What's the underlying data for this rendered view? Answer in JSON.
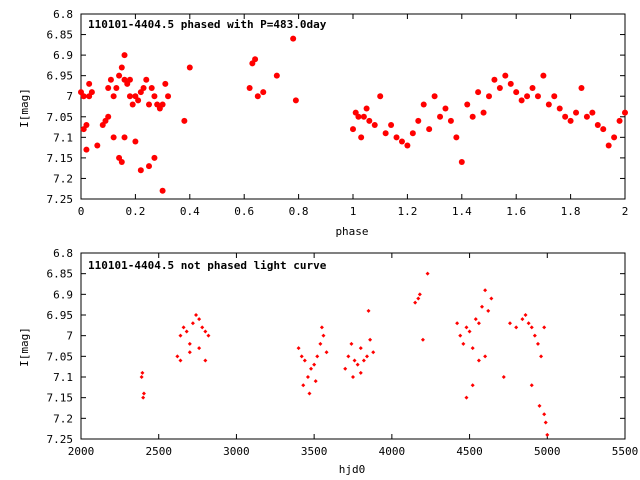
{
  "colors": {
    "points": "#ff0000",
    "frame": "#000000",
    "background": "#ffffff"
  },
  "chart_data": [
    {
      "type": "scatter",
      "title": "110101-4404.5 phased with P=483.0day",
      "xlabel": "phase",
      "ylabel": "I[mag]",
      "xlim": [
        0,
        2
      ],
      "ylim": [
        6.8,
        7.25
      ],
      "y_inverted": true,
      "xticks": [
        "0",
        "0.2",
        "0.4",
        "0.6",
        "0.8",
        "1",
        "1.2",
        "1.4",
        "1.6",
        "1.8",
        "2"
      ],
      "xtick_values": [
        0,
        0.2,
        0.4,
        0.6,
        0.8,
        1.0,
        1.2,
        1.4,
        1.6,
        1.8,
        2.0
      ],
      "yticks": [
        "6.8",
        "6.85",
        "6.9",
        "6.95",
        "7",
        "7.05",
        "7.1",
        "7.15",
        "7.2",
        "7.25"
      ],
      "ytick_values": [
        6.8,
        6.85,
        6.9,
        6.95,
        7.0,
        7.05,
        7.1,
        7.15,
        7.2,
        7.25
      ],
      "marker": "filled-circle",
      "x": [
        0.0,
        0.01,
        0.01,
        0.02,
        0.02,
        0.03,
        0.03,
        0.04,
        0.06,
        0.08,
        0.09,
        0.1,
        0.1,
        0.11,
        0.12,
        0.13,
        0.14,
        0.15,
        0.16,
        0.17,
        0.18,
        0.18,
        0.19,
        0.2,
        0.21,
        0.22,
        0.23,
        0.24,
        0.25,
        0.26,
        0.27,
        0.28,
        0.29,
        0.3,
        0.31,
        0.32,
        0.12,
        0.14,
        0.16,
        0.2,
        0.22,
        0.27,
        0.38,
        0.4,
        0.62,
        0.63,
        0.64,
        0.65,
        0.67,
        0.72,
        0.78,
        0.79,
        0.16,
        0.3,
        0.15,
        0.25
      ],
      "y": [
        6.99,
        7.0,
        7.08,
        7.13,
        7.07,
        7.0,
        6.97,
        6.99,
        7.12,
        7.07,
        7.06,
        6.98,
        7.05,
        6.96,
        7.0,
        6.98,
        6.95,
        6.93,
        6.96,
        6.97,
        6.96,
        7.0,
        7.02,
        7.0,
        7.01,
        6.99,
        6.98,
        6.96,
        7.02,
        6.98,
        7.0,
        7.02,
        7.03,
        7.02,
        6.97,
        7.0,
        7.1,
        7.15,
        7.1,
        7.11,
        7.18,
        7.15,
        7.06,
        6.93,
        6.98,
        6.92,
        6.91,
        7.0,
        6.99,
        6.95,
        6.86,
        7.01,
        6.9,
        7.23,
        7.16,
        7.17
      ],
      "x2": [
        1.0,
        1.01,
        1.02,
        1.03,
        1.04,
        1.05,
        1.06,
        1.08,
        1.1,
        1.12,
        1.14,
        1.16,
        1.18,
        1.2,
        1.22,
        1.24,
        1.26,
        1.28,
        1.3,
        1.32,
        1.34,
        1.36,
        1.38,
        1.4,
        1.42,
        1.44,
        1.46,
        1.48,
        1.5,
        1.52,
        1.54,
        1.56,
        1.58,
        1.6,
        1.62,
        1.64,
        1.66,
        1.68,
        1.7,
        1.72,
        1.74,
        1.76,
        1.78,
        1.8,
        1.82,
        1.84,
        1.86,
        1.88,
        1.9,
        1.92,
        1.94,
        1.96,
        1.98,
        2.0
      ],
      "y2": [
        7.08,
        7.04,
        7.05,
        7.1,
        7.05,
        7.03,
        7.06,
        7.07,
        7.0,
        7.09,
        7.07,
        7.1,
        7.11,
        7.12,
        7.09,
        7.06,
        7.02,
        7.08,
        7.0,
        7.05,
        7.03,
        7.06,
        7.1,
        7.16,
        7.02,
        7.05,
        6.99,
        7.04,
        7.0,
        6.96,
        6.98,
        6.95,
        6.97,
        6.99,
        7.01,
        7.0,
        6.98,
        7.0,
        6.95,
        7.02,
        7.0,
        7.03,
        7.05,
        7.06,
        7.04,
        6.98,
        7.05,
        7.04,
        7.07,
        7.08,
        7.12,
        7.1,
        7.06,
        7.04
      ]
    },
    {
      "type": "scatter",
      "title": "110101-4404.5 not phased light curve",
      "xlabel": "hjd0",
      "ylabel": "I[mag]",
      "xlim": [
        2000,
        5500
      ],
      "ylim": [
        6.8,
        7.25
      ],
      "y_inverted": true,
      "xticks": [
        "2000",
        "2500",
        "3000",
        "3500",
        "4000",
        "4500",
        "5000",
        "5500"
      ],
      "xtick_values": [
        2000,
        2500,
        3000,
        3500,
        4000,
        4500,
        5000,
        5500
      ],
      "yticks": [
        "6.8",
        "6.85",
        "6.9",
        "6.95",
        "7",
        "7.05",
        "7.1",
        "7.15",
        "7.2",
        "7.25"
      ],
      "ytick_values": [
        6.8,
        6.85,
        6.9,
        6.95,
        7.0,
        7.05,
        7.1,
        7.15,
        7.2,
        7.25
      ],
      "marker": "small-diamond",
      "x": [
        2390,
        2395,
        2400,
        2405,
        2620,
        2640,
        2660,
        2680,
        2700,
        2720,
        2740,
        2760,
        2780,
        2800,
        2820,
        2640,
        2700,
        2760,
        2800,
        3400,
        3420,
        3440,
        3460,
        3480,
        3500,
        3520,
        3540,
        3560,
        3580,
        3430,
        3470,
        3510,
        3550,
        3700,
        3720,
        3740,
        3760,
        3780,
        3800,
        3820,
        3840,
        3860,
        3880,
        3750,
        3800,
        3850,
        4150,
        4170,
        4180,
        4230,
        4200,
        4420,
        4440,
        4460,
        4480,
        4500,
        4520,
        4540,
        4560,
        4580,
        4600,
        4620,
        4640,
        4480,
        4520,
        4560,
        4600,
        4720,
        4760,
        4800,
        4840,
        4860,
        4880,
        4900,
        4920,
        4940,
        4960,
        4980,
        4900,
        4950,
        4980,
        4990,
        5000
      ],
      "y": [
        7.1,
        7.09,
        7.15,
        7.14,
        7.05,
        7.0,
        6.98,
        6.99,
        7.02,
        6.97,
        6.95,
        6.96,
        6.98,
        6.99,
        7.0,
        7.06,
        7.04,
        7.03,
        7.06,
        7.03,
        7.05,
        7.06,
        7.1,
        7.08,
        7.07,
        7.05,
        7.02,
        7.0,
        7.04,
        7.12,
        7.14,
        7.11,
        6.98,
        7.08,
        7.05,
        7.02,
        7.06,
        7.07,
        7.03,
        7.06,
        7.05,
        7.01,
        7.04,
        7.1,
        7.09,
        6.94,
        6.92,
        6.91,
        6.9,
        6.85,
        7.01,
        6.97,
        7.0,
        7.02,
        6.98,
        6.99,
        7.03,
        6.96,
        6.97,
        6.93,
        6.89,
        6.94,
        6.91,
        7.15,
        7.12,
        7.06,
        7.05,
        7.1,
        6.97,
        6.98,
        6.96,
        6.95,
        6.97,
        6.98,
        7.0,
        7.02,
        7.05,
        6.98,
        7.12,
        7.17,
        7.19,
        7.21,
        7.24
      ]
    }
  ]
}
